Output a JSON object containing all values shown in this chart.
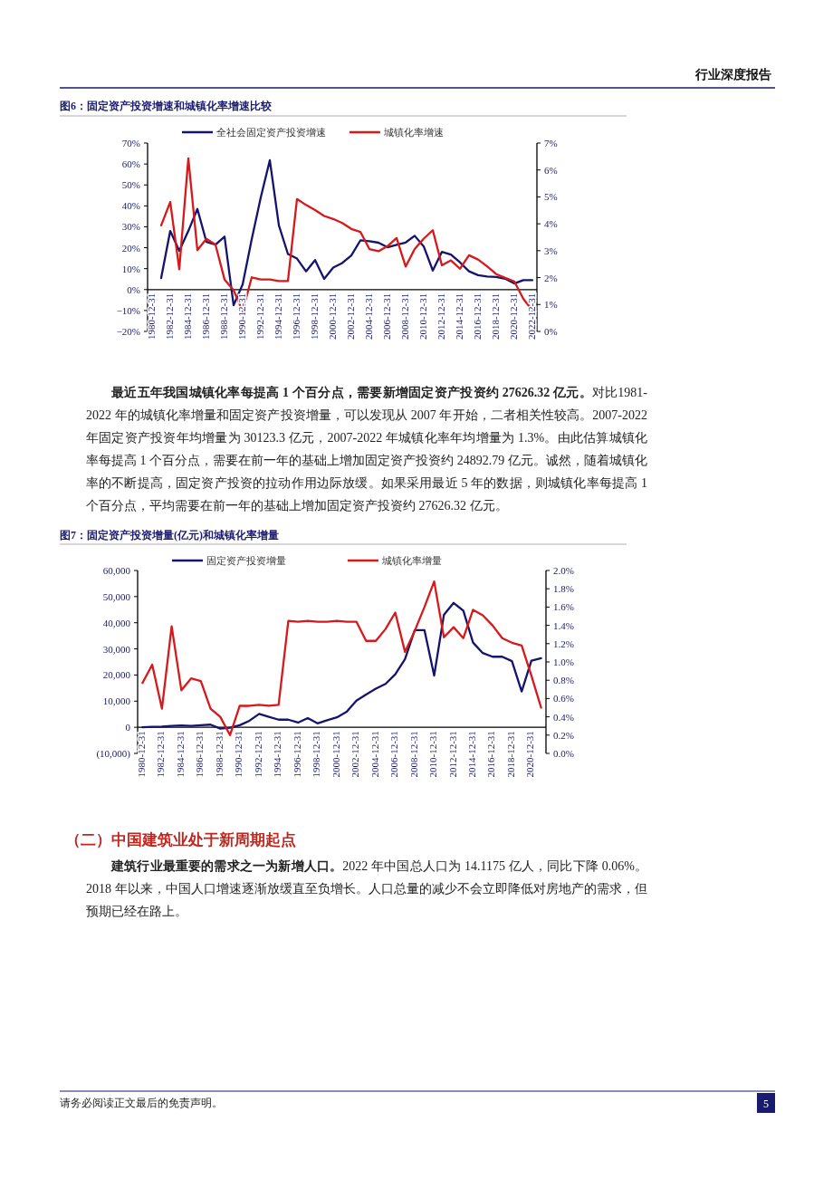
{
  "chart_data": [
    {
      "type": "line",
      "title": "图6：固定资产投资增速和城镇化率增速比较",
      "legend": "top",
      "categories": [
        "1980-12-31",
        null,
        "1982-12-31",
        null,
        "1984-12-31",
        null,
        "1986-12-31",
        null,
        "1988-12-31",
        null,
        "1990-12-31",
        null,
        "1992-12-31",
        null,
        "1994-12-31",
        null,
        "1996-12-31",
        null,
        "1998-12-31",
        null,
        "2000-12-31",
        null,
        "2002-12-31",
        null,
        "2004-12-31",
        null,
        "2006-12-31",
        null,
        "2008-12-31",
        null,
        "2010-12-31",
        null,
        "2012-12-31",
        null,
        "2014-12-31",
        null,
        "2016-12-31",
        null,
        "2018-12-31",
        null,
        "2020-12-31",
        null,
        "2022-12-31"
      ],
      "series": [
        {
          "name": "全社会固定资产投资增速",
          "color": "#14146e",
          "axis": "y",
          "values": [
            null,
            5.5,
            28,
            18.5,
            28,
            38.5,
            22.8,
            21.5,
            25.3,
            -7.5,
            2.5,
            24,
            44,
            61.8,
            30.7,
            17,
            14.8,
            8.7,
            14.1,
            5.1,
            10.5,
            12.7,
            16.3,
            23.5,
            23.1,
            22.4,
            20.2,
            21.4,
            22.5,
            25.7,
            20.6,
            9.1,
            18,
            16.7,
            13,
            8.7,
            6.9,
            6.2,
            6,
            5.2,
            2.9,
            4.5,
            4.5
          ]
        },
        {
          "name": "城镇化率增速",
          "color": "#d7191c",
          "axis": "y2",
          "values": [
            null,
            3.94,
            4.81,
            2.31,
            6.43,
            3.02,
            3.44,
            3.22,
            1.93,
            1.53,
            0.75,
            2.01,
            1.93,
            1.93,
            1.87,
            1.87,
            4.92,
            4.7,
            4.51,
            4.29,
            4.18,
            4.03,
            3.81,
            3.7,
            3.06,
            2.98,
            3.17,
            3.47,
            2.41,
            3.06,
            3.45,
            3.76,
            2.46,
            2.64,
            2.33,
            2.83,
            2.67,
            2.42,
            2.13,
            1.99,
            1.86,
            1.21,
            0.78
          ]
        }
      ],
      "ylim": [
        -20,
        70
      ],
      "yticks": [
        {
          "value": -20,
          "label": "−20%"
        },
        {
          "value": -10,
          "label": "−10%"
        },
        {
          "value": 0,
          "label": "0%"
        },
        {
          "value": 10,
          "label": "10%"
        },
        {
          "value": 20,
          "label": "20%"
        },
        {
          "value": 30,
          "label": "30%"
        },
        {
          "value": 40,
          "label": "40%"
        },
        {
          "value": 50,
          "label": "50%"
        },
        {
          "value": 60,
          "label": "60%"
        },
        {
          "value": 70,
          "label": "70%"
        }
      ],
      "y2lim": [
        0,
        7
      ],
      "y2ticks": [
        {
          "value": 0,
          "label": "0%"
        },
        {
          "value": 1,
          "label": "1%"
        },
        {
          "value": 2,
          "label": "2%"
        },
        {
          "value": 3,
          "label": "3%"
        },
        {
          "value": 4,
          "label": "4%"
        },
        {
          "value": 5,
          "label": "5%"
        },
        {
          "value": 6,
          "label": "6%"
        },
        {
          "value": 7,
          "label": "7%"
        }
      ],
      "annotations": [
        "行业深度报告",
        "最近五年我国城镇化率每提高 1 个百分点，需要新增固定资产投资约 27626.32 亿元。",
        "对比1981-2022 年的城镇化率增量和固定资产投资增量，可以发现从 2007 年开始，二者相关性较高。2007-2022 年固定资产投资年均增量为 30123.3 亿元，2007-2022 年城镇化率年均增量为 1.3%。由此估算城镇化率每提高 1 个百分点，需要在前一年的基础上增加固定资产投资约 24892.79 亿元。诚然，随着城镇化率的不断提高，固定资产投资的拉动作用边际放缓。如果采用最近 5 年的数据，则城镇化率每提高 1 个百分点，平均需要在前一年的基础上增加固定资产投资约 27626.32 亿元。"
      ]
    },
    {
      "type": "line",
      "title": "图7：固定资产投资增量(亿元)和城镇化率增量",
      "legend": "top",
      "categories": [
        "1980-12-31",
        null,
        "1982-12-31",
        null,
        "1984-12-31",
        null,
        "1986-12-31",
        null,
        "1988-12-31",
        null,
        "1990-12-31",
        null,
        "1992-12-31",
        null,
        "1994-12-31",
        null,
        "1996-12-31",
        null,
        "1998-12-31",
        null,
        "2000-12-31",
        null,
        "2002-12-31",
        null,
        "2004-12-31",
        null,
        "2006-12-31",
        null,
        "2008-12-31",
        null,
        "2010-12-31",
        null,
        "2012-12-31",
        null,
        "2014-12-31",
        null,
        "2016-12-31",
        null,
        "2018-12-31",
        null,
        "2020-12-31",
        null
      ],
      "series": [
        {
          "name": "固定资产投资增量",
          "color": "#14146e",
          "axis": "y",
          "values": [
            0,
            200,
            300,
            500,
            700,
            500,
            800,
            1000,
            -500,
            -200,
            800,
            2500,
            5100,
            4000,
            2900,
            2900,
            1800,
            3500,
            1500,
            2700,
            3800,
            5900,
            10200,
            12500,
            14800,
            16600,
            20300,
            26100,
            37200,
            37200,
            19800,
            43000,
            47600,
            44600,
            32400,
            28400,
            27000,
            27000,
            25300,
            13700,
            25500,
            26400
          ]
        },
        {
          "name": "城镇化率增量",
          "color": "#d7191c",
          "axis": "y2",
          "values": [
            0.77,
            0.97,
            0.49,
            1.39,
            0.69,
            0.82,
            0.79,
            0.49,
            0.4,
            0.2,
            0.52,
            0.52,
            0.53,
            0.52,
            0.53,
            1.45,
            1.44,
            1.45,
            1.44,
            1.44,
            1.45,
            1.44,
            1.44,
            1.23,
            1.23,
            1.36,
            1.54,
            1.11,
            1.34,
            1.6,
            1.88,
            1.27,
            1.38,
            1.26,
            1.57,
            1.51,
            1.4,
            1.26,
            1.21,
            1.18,
            0.85,
            0.5
          ]
        }
      ],
      "ylim": [
        -10000,
        60000
      ],
      "yticks": [
        {
          "value": -10000,
          "label": "(10,000)"
        },
        0,
        {
          "value": 10000,
          "label": "10,000"
        },
        {
          "value": 20000,
          "label": "20,000"
        },
        {
          "value": 30000,
          "label": "30,000"
        },
        {
          "value": 40000,
          "label": "40,000"
        },
        {
          "value": 50000,
          "label": "50,000"
        },
        {
          "value": 60000,
          "label": "60,000"
        }
      ],
      "y2lim": [
        0,
        2
      ],
      "y2ticks": [
        {
          "value": 0,
          "label": "0.0%"
        },
        {
          "value": 0.2,
          "label": "0.2%"
        },
        {
          "value": 0.4,
          "label": "0.4%"
        },
        {
          "value": 0.6,
          "label": "0.6%"
        },
        {
          "value": 0.8,
          "label": "0.8%"
        },
        {
          "value": 1.0,
          "label": "1.0%"
        },
        {
          "value": 1.2,
          "label": "1.2%"
        },
        {
          "value": 1.4,
          "label": "1.4%"
        },
        {
          "value": 1.6,
          "label": "1.6%"
        },
        {
          "value": 1.8,
          "label": "1.8%"
        },
        {
          "value": 2.0,
          "label": "2.0%"
        }
      ],
      "annotations": [
        "（二）中国建筑业处于新周期起点",
        "建筑行业最重要的需求之一为新增人口。",
        "2022 年中国总人口为 14.1175 亿人，同比下降 0.06%。2018 年以来，中国人口增速逐渐放缓直至负增长。人口总量的减少不会立即降低对房地产的需求，但预期已经在路上。",
        "请务必阅读正文最后的免责声明。",
        "5"
      ]
    }
  ]
}
